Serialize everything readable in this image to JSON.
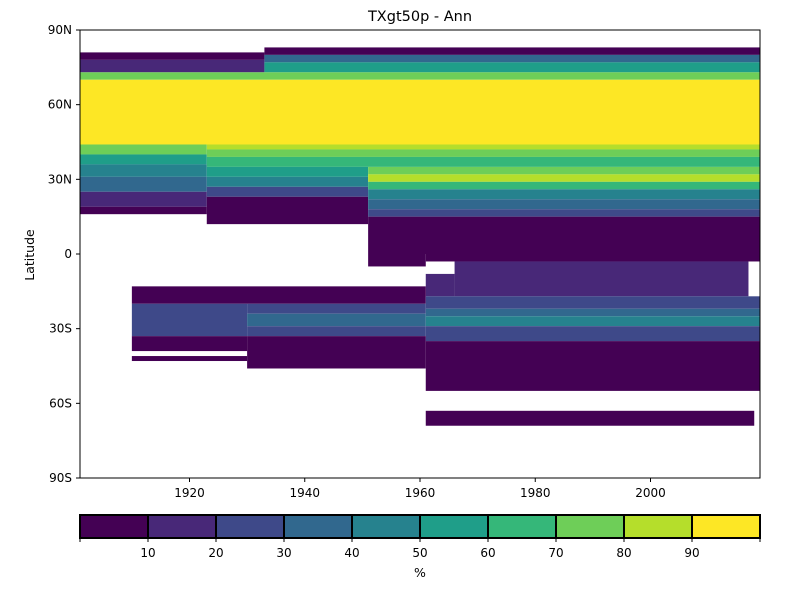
{
  "chart_data": {
    "type": "heatmap",
    "title": "TXgt50p - Ann",
    "xlabel": "",
    "ylabel": "Latitude",
    "xlim": [
      1901,
      2019
    ],
    "ylim": [
      -90,
      90
    ],
    "x_ticks": [
      1920,
      1940,
      1960,
      1980,
      2000
    ],
    "y_ticks": [
      {
        "value": 90,
        "label": "90N"
      },
      {
        "value": 60,
        "label": "60N"
      },
      {
        "value": 30,
        "label": "30N"
      },
      {
        "value": 0,
        "label": "0"
      },
      {
        "value": -30,
        "label": "30S"
      },
      {
        "value": -60,
        "label": "60S"
      },
      {
        "value": -90,
        "label": "90S"
      }
    ],
    "colorbar": {
      "label": "%",
      "range": [
        0,
        100
      ],
      "bounds": [
        0,
        10,
        20,
        30,
        40,
        50,
        60,
        70,
        80,
        90,
        100
      ],
      "tick_labels": [
        "10",
        "20",
        "30",
        "40",
        "50",
        "60",
        "70",
        "80",
        "90"
      ],
      "colors": [
        "#440154",
        "#482878",
        "#3e4989",
        "#31688e",
        "#26828e",
        "#1f9e89",
        "#35b779",
        "#6ece58",
        "#b5de2b",
        "#fde725"
      ]
    },
    "cells": [
      {
        "x0": 1901,
        "x1": 1933,
        "lat0": 78,
        "lat1": 81,
        "value": 5
      },
      {
        "x0": 1933,
        "x1": 2019,
        "lat0": 80,
        "lat1": 83,
        "value": 5
      },
      {
        "x0": 1901,
        "x1": 1933,
        "lat0": 73,
        "lat1": 78,
        "value": 15
      },
      {
        "x0": 1933,
        "x1": 2019,
        "lat0": 77,
        "lat1": 80,
        "value": 35
      },
      {
        "x0": 1933,
        "x1": 2019,
        "lat0": 73,
        "lat1": 77,
        "value": 55
      },
      {
        "x0": 1901,
        "x1": 2019,
        "lat0": 70,
        "lat1": 73,
        "value": 75
      },
      {
        "x0": 1901,
        "x1": 2019,
        "lat0": 44,
        "lat1": 70,
        "value": 95
      },
      {
        "x0": 1901,
        "x1": 1923,
        "lat0": 40,
        "lat1": 44,
        "value": 75
      },
      {
        "x0": 1901,
        "x1": 1923,
        "lat0": 36,
        "lat1": 40,
        "value": 55
      },
      {
        "x0": 1901,
        "x1": 1923,
        "lat0": 31,
        "lat1": 36,
        "value": 45
      },
      {
        "x0": 1901,
        "x1": 1923,
        "lat0": 25,
        "lat1": 31,
        "value": 35
      },
      {
        "x0": 1901,
        "x1": 1923,
        "lat0": 19,
        "lat1": 25,
        "value": 15
      },
      {
        "x0": 1901,
        "x1": 1923,
        "lat0": 16,
        "lat1": 19,
        "value": 5
      },
      {
        "x0": 1923,
        "x1": 2019,
        "lat0": 42,
        "lat1": 44,
        "value": 85
      },
      {
        "x0": 1923,
        "x1": 2019,
        "lat0": 39,
        "lat1": 42,
        "value": 75
      },
      {
        "x0": 1923,
        "x1": 2019,
        "lat0": 35,
        "lat1": 39,
        "value": 65
      },
      {
        "x0": 1923,
        "x1": 1951,
        "lat0": 31,
        "lat1": 35,
        "value": 55
      },
      {
        "x0": 1923,
        "x1": 1951,
        "lat0": 27,
        "lat1": 31,
        "value": 45
      },
      {
        "x0": 1923,
        "x1": 1951,
        "lat0": 23,
        "lat1": 27,
        "value": 25
      },
      {
        "x0": 1923,
        "x1": 1951,
        "lat0": 12,
        "lat1": 23,
        "value": 5
      },
      {
        "x0": 1951,
        "x1": 2019,
        "lat0": 32,
        "lat1": 35,
        "value": 75
      },
      {
        "x0": 1951,
        "x1": 2019,
        "lat0": 29,
        "lat1": 32,
        "value": 85
      },
      {
        "x0": 1951,
        "x1": 2019,
        "lat0": 26,
        "lat1": 29,
        "value": 65
      },
      {
        "x0": 1951,
        "x1": 2019,
        "lat0": 22,
        "lat1": 26,
        "value": 45
      },
      {
        "x0": 1951,
        "x1": 2019,
        "lat0": 18,
        "lat1": 22,
        "value": 35
      },
      {
        "x0": 1951,
        "x1": 2019,
        "lat0": 15,
        "lat1": 18,
        "value": 25
      },
      {
        "x0": 1951,
        "x1": 2019,
        "lat0": 0,
        "lat1": 15,
        "value": 5
      },
      {
        "x0": 1951,
        "x1": 1961,
        "lat0": -5,
        "lat1": 0,
        "value": 5
      },
      {
        "x0": 1961,
        "x1": 2019,
        "lat0": -3,
        "lat1": 0,
        "value": 5
      },
      {
        "x0": 1966,
        "x1": 2017,
        "lat0": -17,
        "lat1": -3,
        "value": 15
      },
      {
        "x0": 1961,
        "x1": 1966,
        "lat0": -17,
        "lat1": -8,
        "value": 15
      },
      {
        "x0": 1910,
        "x1": 1961,
        "lat0": -20,
        "lat1": -13,
        "value": 5
      },
      {
        "x0": 1961,
        "x1": 2019,
        "lat0": -22,
        "lat1": -17,
        "value": 25
      },
      {
        "x0": 1910,
        "x1": 1930,
        "lat0": -33,
        "lat1": -20,
        "value": 25
      },
      {
        "x0": 1930,
        "x1": 1961,
        "lat0": -24,
        "lat1": -20,
        "value": 25
      },
      {
        "x0": 1930,
        "x1": 1961,
        "lat0": -29,
        "lat1": -24,
        "value": 35
      },
      {
        "x0": 1930,
        "x1": 1961,
        "lat0": -33,
        "lat1": -29,
        "value": 25
      },
      {
        "x0": 1961,
        "x1": 2019,
        "lat0": -25,
        "lat1": -22,
        "value": 35
      },
      {
        "x0": 1961,
        "x1": 2019,
        "lat0": -29,
        "lat1": -25,
        "value": 45
      },
      {
        "x0": 1961,
        "x1": 2019,
        "lat0": -35,
        "lat1": -29,
        "value": 25
      },
      {
        "x0": 1910,
        "x1": 1930,
        "lat0": -39,
        "lat1": -33,
        "value": 5
      },
      {
        "x0": 1930,
        "x1": 1961,
        "lat0": -46,
        "lat1": -33,
        "value": 5
      },
      {
        "x0": 1961,
        "x1": 2019,
        "lat0": -55,
        "lat1": -35,
        "value": 5
      },
      {
        "x0": 1910,
        "x1": 1930,
        "lat0": -43,
        "lat1": -41,
        "value": 5
      },
      {
        "x0": 1961,
        "x1": 2018,
        "lat0": -69,
        "lat1": -63,
        "value": 5
      }
    ]
  }
}
